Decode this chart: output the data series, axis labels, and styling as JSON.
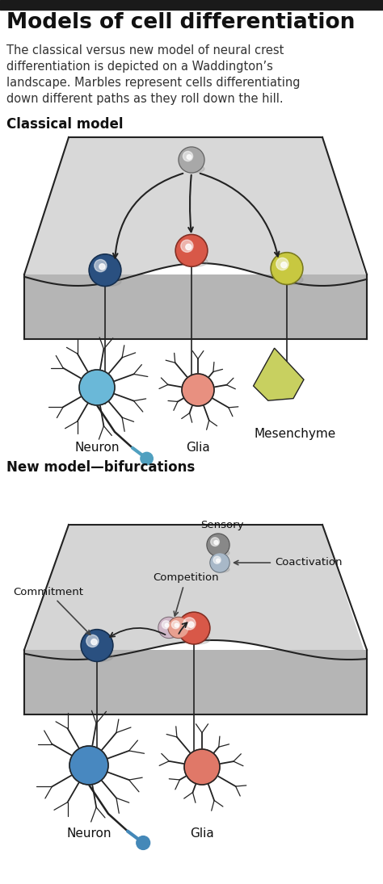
{
  "title": "Models of cell differentiation",
  "subtitle_lines": [
    "The classical versus new model of neural crest",
    "differentiation is depicted on a Waddington’s",
    "landscape. Marbles represent cells differentiating",
    "down different paths as they roll down the hill."
  ],
  "section1": "Classical model",
  "section2": "New model—bifurcations",
  "bg_color": "#ffffff",
  "header_bar_color": "#1a1a1a",
  "landscape_fill_top": "#d8d8d8",
  "landscape_fill_front": "#b8b8b8",
  "landscape_stroke": "#222222",
  "marble_gray_color": "#a8a8a8",
  "marble_blue_color": "#2a5080",
  "marble_red_color": "#d85848",
  "marble_yellow_color": "#c8c840",
  "marble_lightblue_color": "#8ab0d0",
  "neuron_body_classic": "#6ab8d8",
  "neuron_axon_classic": "#50a0c0",
  "glia_body_classic": "#e89080",
  "mesenchyme_fill": "#c8d060",
  "neuron_body_new": "#4888c0",
  "neuron_axon_new": "#4488b8",
  "glia_body_new": "#e07868",
  "cell_outline": "#222222",
  "arrow_color": "#222222",
  "text_dark": "#111111",
  "text_gray": "#444444"
}
